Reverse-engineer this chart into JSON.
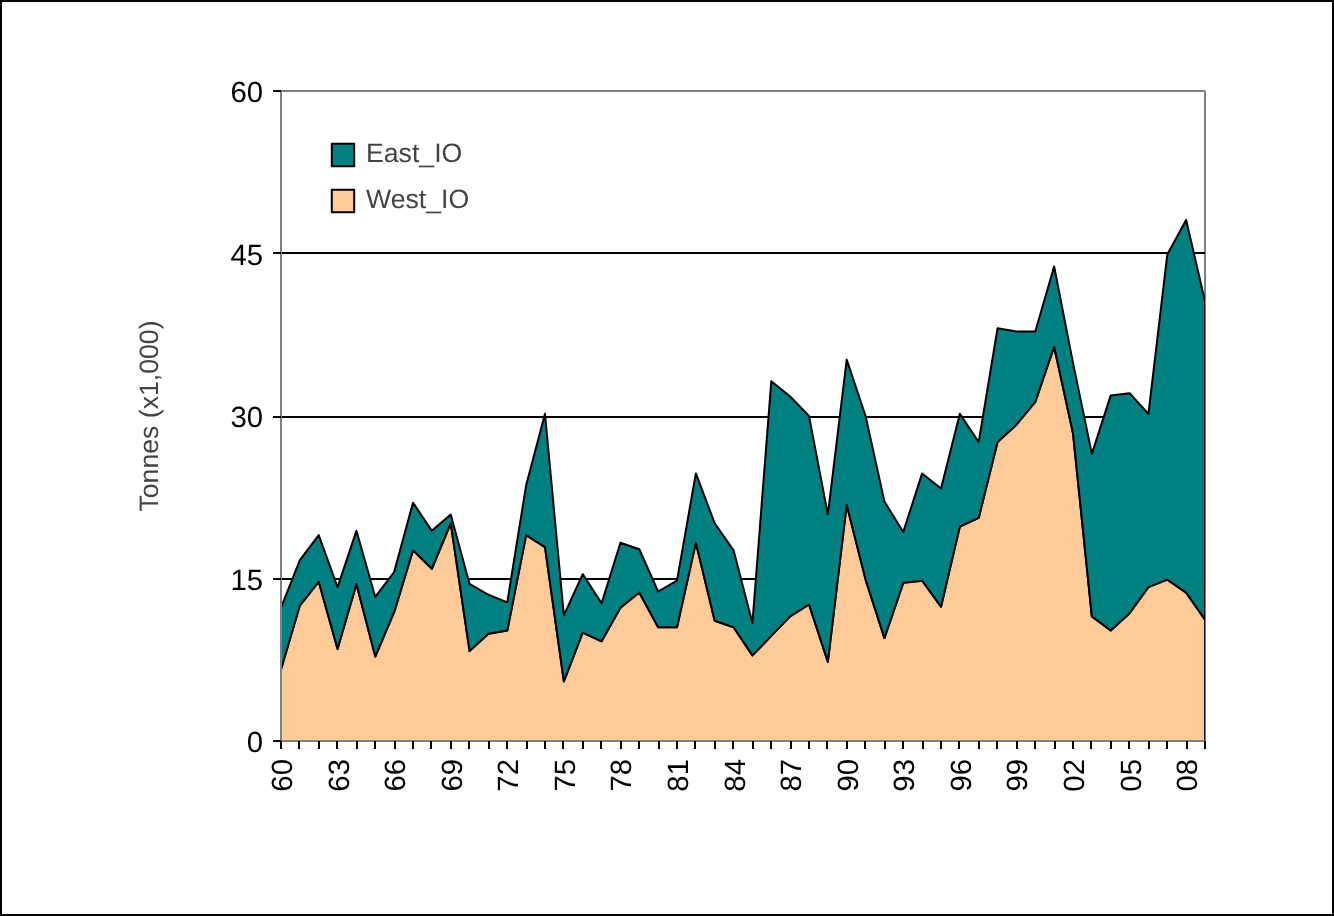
{
  "chart_data": {
    "type": "area",
    "stacked": true,
    "ylabel": "Tonnes (x1,000)",
    "x": [
      1960,
      1961,
      1962,
      1963,
      1964,
      1965,
      1966,
      1967,
      1968,
      1969,
      1970,
      1971,
      1972,
      1973,
      1974,
      1975,
      1976,
      1977,
      1978,
      1979,
      1980,
      1981,
      1982,
      1983,
      1984,
      1985,
      1986,
      1987,
      1988,
      1989,
      1990,
      1991,
      1992,
      1993,
      1994,
      1995,
      1996,
      1997,
      1998,
      1999,
      2000,
      2001,
      2002,
      2003,
      2004,
      2005,
      2006,
      2007,
      2008,
      2009
    ],
    "series": [
      {
        "name": "West_IO",
        "color": "#ffcc99",
        "values": [
          6.6,
          12.5,
          14.7,
          8.5,
          14.5,
          7.8,
          11.9,
          17.6,
          15.9,
          20.1,
          8.3,
          9.9,
          10.2,
          19.0,
          17.9,
          5.5,
          10.0,
          9.2,
          12.3,
          13.7,
          10.5,
          10.5,
          18.3,
          11.1,
          10.5,
          7.9,
          9.7,
          11.5,
          12.6,
          7.3,
          21.8,
          14.9,
          9.5,
          14.6,
          14.8,
          12.4,
          19.8,
          20.6,
          27.6,
          29.2,
          31.3,
          36.4,
          28.4,
          11.5,
          10.2,
          11.8,
          14.2,
          14.9,
          13.7,
          11.2
        ]
      },
      {
        "name": "East_IO",
        "color": "#008080",
        "values": [
          5.7,
          4.2,
          4.3,
          5.7,
          4.9,
          5.5,
          3.7,
          4.4,
          3.5,
          0.8,
          6.2,
          3.6,
          2.6,
          4.6,
          12.3,
          6.1,
          5.4,
          3.5,
          6.0,
          4.0,
          3.3,
          4.3,
          6.4,
          9.0,
          7.1,
          3.0,
          23.5,
          20.3,
          17.4,
          13.6,
          13.4,
          15.1,
          12.6,
          4.7,
          9.9,
          10.9,
          10.4,
          7.0,
          10.5,
          8.6,
          6.5,
          7.4,
          6.5,
          15.0,
          21.7,
          20.3,
          16.0,
          30.0,
          34.4,
          29.4
        ]
      }
    ],
    "xlim": [
      1960,
      2009
    ],
    "xticks": [
      {
        "value": 1960,
        "label": "60"
      },
      {
        "value": 1961,
        "label": null
      },
      {
        "value": 1962,
        "label": null
      },
      {
        "value": 1963,
        "label": "63"
      },
      {
        "value": 1964,
        "label": null
      },
      {
        "value": 1965,
        "label": null
      },
      {
        "value": 1966,
        "label": "66"
      },
      {
        "value": 1967,
        "label": null
      },
      {
        "value": 1968,
        "label": null
      },
      {
        "value": 1969,
        "label": "69"
      },
      {
        "value": 1970,
        "label": null
      },
      {
        "value": 1971,
        "label": null
      },
      {
        "value": 1972,
        "label": "72"
      },
      {
        "value": 1973,
        "label": null
      },
      {
        "value": 1974,
        "label": null
      },
      {
        "value": 1975,
        "label": "75"
      },
      {
        "value": 1976,
        "label": null
      },
      {
        "value": 1977,
        "label": null
      },
      {
        "value": 1978,
        "label": "78"
      },
      {
        "value": 1979,
        "label": null
      },
      {
        "value": 1980,
        "label": null
      },
      {
        "value": 1981,
        "label": "81"
      },
      {
        "value": 1982,
        "label": null
      },
      {
        "value": 1983,
        "label": null
      },
      {
        "value": 1984,
        "label": "84"
      },
      {
        "value": 1985,
        "label": null
      },
      {
        "value": 1986,
        "label": null
      },
      {
        "value": 1987,
        "label": "87"
      },
      {
        "value": 1988,
        "label": null
      },
      {
        "value": 1989,
        "label": null
      },
      {
        "value": 1990,
        "label": "90"
      },
      {
        "value": 1991,
        "label": null
      },
      {
        "value": 1992,
        "label": null
      },
      {
        "value": 1993,
        "label": "93"
      },
      {
        "value": 1994,
        "label": null
      },
      {
        "value": 1995,
        "label": null
      },
      {
        "value": 1996,
        "label": "96"
      },
      {
        "value": 1997,
        "label": null
      },
      {
        "value": 1998,
        "label": null
      },
      {
        "value": 1999,
        "label": "99"
      },
      {
        "value": 2000,
        "label": null
      },
      {
        "value": 2001,
        "label": null
      },
      {
        "value": 2002,
        "label": "02"
      },
      {
        "value": 2003,
        "label": null
      },
      {
        "value": 2004,
        "label": null
      },
      {
        "value": 2005,
        "label": "05"
      },
      {
        "value": 2006,
        "label": null
      },
      {
        "value": 2007,
        "label": null
      },
      {
        "value": 2008,
        "label": "08"
      },
      {
        "value": 2009,
        "label": null
      }
    ],
    "ylim": [
      0,
      60
    ],
    "yticks": [
      0,
      15,
      30,
      45,
      60
    ],
    "grid": "y",
    "legend": "top left"
  }
}
